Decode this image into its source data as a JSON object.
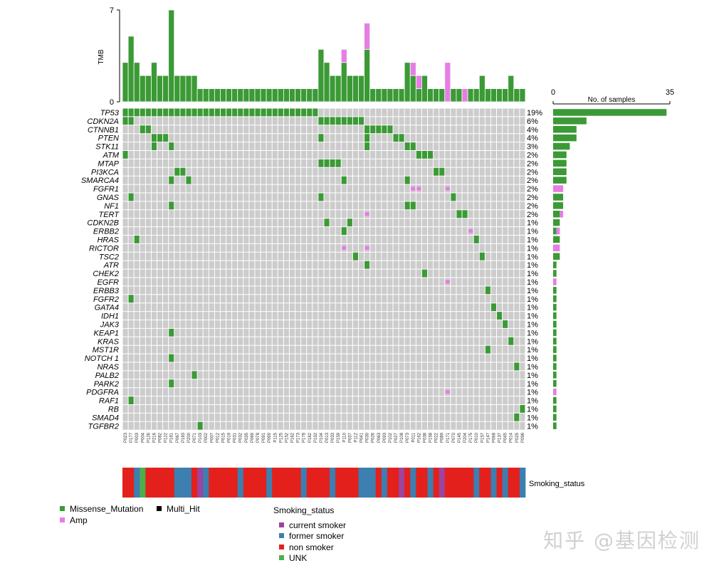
{
  "chart_data": {
    "type": "heatmap",
    "subtype": "oncoplot",
    "tmb_axis": {
      "label": "TMB",
      "min": 0,
      "max": 7
    },
    "samples_axis": {
      "label": "No. of samples",
      "min": 0,
      "max": 35
    },
    "samples": [
      "P023",
      "P177",
      "P003",
      "P004",
      "P126",
      "P216",
      "P082",
      "P122",
      "P181",
      "P067",
      "P183",
      "P200",
      "P071",
      "P103",
      "P002",
      "P007",
      "P012",
      "P015",
      "P019",
      "P031",
      "P032",
      "P035",
      "P069",
      "P078",
      "P091",
      "P099",
      "P115",
      "P125",
      "P152",
      "P162",
      "P173",
      "P178",
      "P182",
      "P192",
      "P104",
      "P013",
      "P033",
      "P159",
      "P110",
      "P037",
      "P112",
      "P041",
      "P030",
      "P026",
      "P063",
      "P093",
      "P102",
      "P027",
      "P108",
      "P073",
      "P011",
      "P162",
      "P038",
      "P158",
      "P022",
      "P089",
      "P171",
      "P070",
      "P145",
      "P204",
      "P175",
      "P010",
      "P157",
      "P147",
      "P098",
      "P137",
      "P045",
      "P014",
      "P025",
      "P096"
    ],
    "tmb": [
      {
        "mis": 3,
        "amp": 0
      },
      {
        "mis": 5,
        "amp": 0
      },
      {
        "mis": 3,
        "amp": 0
      },
      {
        "mis": 2,
        "amp": 0
      },
      {
        "mis": 2,
        "amp": 0
      },
      {
        "mis": 3,
        "amp": 0
      },
      {
        "mis": 2,
        "amp": 0
      },
      {
        "mis": 2,
        "amp": 0
      },
      {
        "mis": 7,
        "amp": 0
      },
      {
        "mis": 2,
        "amp": 0
      },
      {
        "mis": 2,
        "amp": 0
      },
      {
        "mis": 2,
        "amp": 0
      },
      {
        "mis": 2,
        "amp": 0
      },
      {
        "mis": 1,
        "amp": 0
      },
      {
        "mis": 1,
        "amp": 0
      },
      {
        "mis": 1,
        "amp": 0
      },
      {
        "mis": 1,
        "amp": 0
      },
      {
        "mis": 1,
        "amp": 0
      },
      {
        "mis": 1,
        "amp": 0
      },
      {
        "mis": 1,
        "amp": 0
      },
      {
        "mis": 1,
        "amp": 0
      },
      {
        "mis": 1,
        "amp": 0
      },
      {
        "mis": 1,
        "amp": 0
      },
      {
        "mis": 1,
        "amp": 0
      },
      {
        "mis": 1,
        "amp": 0
      },
      {
        "mis": 1,
        "amp": 0
      },
      {
        "mis": 1,
        "amp": 0
      },
      {
        "mis": 1,
        "amp": 0
      },
      {
        "mis": 1,
        "amp": 0
      },
      {
        "mis": 1,
        "amp": 0
      },
      {
        "mis": 1,
        "amp": 0
      },
      {
        "mis": 1,
        "amp": 0
      },
      {
        "mis": 1,
        "amp": 0
      },
      {
        "mis": 1,
        "amp": 0
      },
      {
        "mis": 4,
        "amp": 0
      },
      {
        "mis": 3,
        "amp": 0
      },
      {
        "mis": 2,
        "amp": 0
      },
      {
        "mis": 2,
        "amp": 0
      },
      {
        "mis": 3,
        "amp": 1
      },
      {
        "mis": 2,
        "amp": 0
      },
      {
        "mis": 2,
        "amp": 0
      },
      {
        "mis": 2,
        "amp": 0
      },
      {
        "mis": 4,
        "amp": 2
      },
      {
        "mis": 1,
        "amp": 0
      },
      {
        "mis": 1,
        "amp": 0
      },
      {
        "mis": 1,
        "amp": 0
      },
      {
        "mis": 1,
        "amp": 0
      },
      {
        "mis": 1,
        "amp": 0
      },
      {
        "mis": 1,
        "amp": 0
      },
      {
        "mis": 3,
        "amp": 0
      },
      {
        "mis": 2,
        "amp": 1
      },
      {
        "mis": 1,
        "amp": 1
      },
      {
        "mis": 2,
        "amp": 0
      },
      {
        "mis": 1,
        "amp": 0
      },
      {
        "mis": 1,
        "amp": 0
      },
      {
        "mis": 1,
        "amp": 0
      },
      {
        "mis": 0,
        "amp": 3
      },
      {
        "mis": 1,
        "amp": 0
      },
      {
        "mis": 1,
        "amp": 0
      },
      {
        "mis": 0,
        "amp": 1
      },
      {
        "mis": 1,
        "amp": 0
      },
      {
        "mis": 1,
        "amp": 0
      },
      {
        "mis": 2,
        "amp": 0
      },
      {
        "mis": 1,
        "amp": 0
      },
      {
        "mis": 1,
        "amp": 0
      },
      {
        "mis": 1,
        "amp": 0
      },
      {
        "mis": 1,
        "amp": 0
      },
      {
        "mis": 2,
        "amp": 0
      },
      {
        "mis": 1,
        "amp": 0
      },
      {
        "mis": 1,
        "amp": 0
      }
    ],
    "genes": [
      {
        "name": "TP53",
        "pct": "19%",
        "mis": [
          0,
          1,
          2,
          3,
          4,
          5,
          6,
          7,
          8,
          9,
          10,
          11,
          12,
          13,
          14,
          15,
          16,
          17,
          18,
          19,
          20,
          21,
          22,
          23,
          24,
          25,
          26,
          27,
          28,
          29,
          30,
          31,
          32,
          33
        ],
        "amp": []
      },
      {
        "name": "CDKN2A",
        "pct": "6%",
        "mis": [
          0,
          1,
          34,
          35,
          36,
          37,
          38,
          39,
          40,
          41
        ],
        "amp": []
      },
      {
        "name": "CTNNB1",
        "pct": "4%",
        "mis": [
          3,
          4,
          42,
          43,
          44,
          45,
          46
        ],
        "amp": []
      },
      {
        "name": "PTEN",
        "pct": "4%",
        "mis": [
          5,
          6,
          7,
          34,
          42,
          47,
          48
        ],
        "amp": []
      },
      {
        "name": "STK11",
        "pct": "3%",
        "mis": [
          5,
          8,
          42,
          49,
          50
        ],
        "amp": []
      },
      {
        "name": "ATM",
        "pct": "2%",
        "mis": [
          0,
          51,
          52,
          53
        ],
        "amp": []
      },
      {
        "name": "MTAP",
        "pct": "2%",
        "mis": [
          34,
          35,
          36,
          37
        ],
        "amp": []
      },
      {
        "name": "PI3KCA",
        "pct": "2%",
        "mis": [
          9,
          10,
          54,
          55
        ],
        "amp": []
      },
      {
        "name": "SMARCA4",
        "pct": "2%",
        "mis": [
          8,
          11,
          38,
          49
        ],
        "amp": []
      },
      {
        "name": "FGFR1",
        "pct": "2%",
        "mis": [],
        "amp": [
          50,
          51,
          56
        ]
      },
      {
        "name": "GNAS",
        "pct": "2%",
        "mis": [
          1,
          34,
          57
        ],
        "amp": []
      },
      {
        "name": "NF1",
        "pct": "2%",
        "mis": [
          8,
          49,
          50
        ],
        "amp": []
      },
      {
        "name": "TERT",
        "pct": "2%",
        "mis": [
          58,
          59
        ],
        "amp": [
          42
        ]
      },
      {
        "name": "CDKN2B",
        "pct": "1%",
        "mis": [
          35,
          39
        ],
        "amp": []
      },
      {
        "name": "ERBB2",
        "pct": "1%",
        "mis": [
          38
        ],
        "amp": [
          60
        ]
      },
      {
        "name": "HRAS",
        "pct": "1%",
        "mis": [
          2,
          61
        ],
        "amp": []
      },
      {
        "name": "RICTOR",
        "pct": "1%",
        "mis": [],
        "amp": [
          38,
          42
        ]
      },
      {
        "name": "TSC2",
        "pct": "1%",
        "mis": [
          40,
          62
        ],
        "amp": []
      },
      {
        "name": "ATR",
        "pct": "1%",
        "mis": [
          42
        ],
        "amp": []
      },
      {
        "name": "CHEK2",
        "pct": "1%",
        "mis": [
          52
        ],
        "amp": []
      },
      {
        "name": "EGFR",
        "pct": "1%",
        "mis": [],
        "amp": [
          56
        ]
      },
      {
        "name": "ERBB3",
        "pct": "1%",
        "mis": [
          63
        ],
        "amp": []
      },
      {
        "name": "FGFR2",
        "pct": "1%",
        "mis": [
          1
        ],
        "amp": []
      },
      {
        "name": "GATA4",
        "pct": "1%",
        "mis": [
          64
        ],
        "amp": []
      },
      {
        "name": "IDH1",
        "pct": "1%",
        "mis": [
          65
        ],
        "amp": []
      },
      {
        "name": "JAK3",
        "pct": "1%",
        "mis": [
          66
        ],
        "amp": []
      },
      {
        "name": "KEAP1",
        "pct": "1%",
        "mis": [
          8
        ],
        "amp": []
      },
      {
        "name": "KRAS",
        "pct": "1%",
        "mis": [
          67
        ],
        "amp": []
      },
      {
        "name": "MST1R",
        "pct": "1%",
        "mis": [
          63
        ],
        "amp": []
      },
      {
        "name": "NOTCH 1",
        "pct": "1%",
        "mis": [
          8
        ],
        "amp": []
      },
      {
        "name": "NRAS",
        "pct": "1%",
        "mis": [
          68
        ],
        "amp": []
      },
      {
        "name": "PALB2",
        "pct": "1%",
        "mis": [
          12
        ],
        "amp": []
      },
      {
        "name": "PARK2",
        "pct": "1%",
        "mis": [
          8
        ],
        "amp": []
      },
      {
        "name": "PDGFRA",
        "pct": "1%",
        "mis": [],
        "amp": [
          56
        ]
      },
      {
        "name": "RAF1",
        "pct": "1%",
        "mis": [
          1
        ],
        "amp": []
      },
      {
        "name": "RB",
        "pct": "1%",
        "mis": [
          69
        ],
        "amp": []
      },
      {
        "name": "SMAD4",
        "pct": "1%",
        "mis": [
          68
        ],
        "amp": []
      },
      {
        "name": "TGFBR2",
        "pct": "1%",
        "mis": [
          13
        ],
        "amp": []
      }
    ],
    "gene_counts": [
      {
        "mis": 34,
        "amp": 0
      },
      {
        "mis": 10,
        "amp": 0
      },
      {
        "mis": 7,
        "amp": 0
      },
      {
        "mis": 7,
        "amp": 0
      },
      {
        "mis": 5,
        "amp": 0
      },
      {
        "mis": 4,
        "amp": 0
      },
      {
        "mis": 4,
        "amp": 0
      },
      {
        "mis": 4,
        "amp": 0
      },
      {
        "mis": 4,
        "amp": 0
      },
      {
        "mis": 0,
        "amp": 3
      },
      {
        "mis": 3,
        "amp": 0
      },
      {
        "mis": 3,
        "amp": 0
      },
      {
        "mis": 2,
        "amp": 1
      },
      {
        "mis": 2,
        "amp": 0
      },
      {
        "mis": 1,
        "amp": 1
      },
      {
        "mis": 2,
        "amp": 0
      },
      {
        "mis": 0,
        "amp": 2
      },
      {
        "mis": 2,
        "amp": 0
      },
      {
        "mis": 1,
        "amp": 0
      },
      {
        "mis": 1,
        "amp": 0
      },
      {
        "mis": 0,
        "amp": 1
      },
      {
        "mis": 1,
        "amp": 0
      },
      {
        "mis": 1,
        "amp": 0
      },
      {
        "mis": 1,
        "amp": 0
      },
      {
        "mis": 1,
        "amp": 0
      },
      {
        "mis": 1,
        "amp": 0
      },
      {
        "mis": 1,
        "amp": 0
      },
      {
        "mis": 1,
        "amp": 0
      },
      {
        "mis": 1,
        "amp": 0
      },
      {
        "mis": 1,
        "amp": 0
      },
      {
        "mis": 1,
        "amp": 0
      },
      {
        "mis": 1,
        "amp": 0
      },
      {
        "mis": 1,
        "amp": 0
      },
      {
        "mis": 0,
        "amp": 1
      },
      {
        "mis": 1,
        "amp": 0
      },
      {
        "mis": 1,
        "amp": 0
      },
      {
        "mis": 1,
        "amp": 0
      },
      {
        "mis": 1,
        "amp": 0
      }
    ],
    "smoking_status": [
      "non",
      "non",
      "former",
      "UNK",
      "non",
      "non",
      "non",
      "non",
      "non",
      "former",
      "former",
      "former",
      "non",
      "current",
      "former",
      "non",
      "non",
      "non",
      "non",
      "non",
      "former",
      "non",
      "non",
      "non",
      "non",
      "former",
      "non",
      "non",
      "non",
      "non",
      "non",
      "former",
      "non",
      "non",
      "non",
      "non",
      "former",
      "non",
      "non",
      "non",
      "non",
      "former",
      "former",
      "former",
      "non",
      "former",
      "non",
      "non",
      "current",
      "non",
      "former",
      "non",
      "non",
      "former",
      "non",
      "current",
      "non",
      "non",
      "non",
      "non",
      "non",
      "former",
      "non",
      "non",
      "former",
      "non",
      "former",
      "non",
      "non",
      "former"
    ],
    "annotation_label": "Smoking_status",
    "legend_alterations": [
      {
        "label": "Missense_Mutation",
        "color": "#3b9a35"
      },
      {
        "label": "Multi_Hit",
        "color": "#000000"
      },
      {
        "label": "Amp",
        "color": "#e57ee2"
      }
    ],
    "legend_smoking_title": "Smoking_status",
    "legend_smoking": [
      {
        "key": "current",
        "label": "current smoker",
        "color": "#9c44a0"
      },
      {
        "key": "former",
        "label": "former smoker",
        "color": "#3c7fb0"
      },
      {
        "key": "non",
        "label": "non smoker",
        "color": "#e3201b"
      },
      {
        "key": "UNK",
        "label": "UNK",
        "color": "#4daf4a"
      }
    ]
  },
  "colors": {
    "missense": "#3b9a35",
    "amp": "#e57ee2",
    "empty": "#cccccc",
    "grid": "#ffffff"
  },
  "watermark": "知乎 @基因检测"
}
